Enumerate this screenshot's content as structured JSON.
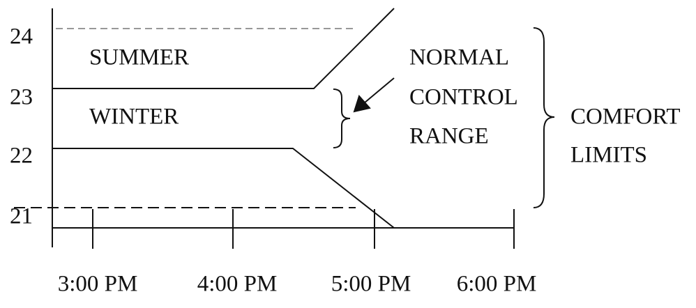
{
  "y_labels": [
    "24",
    "23",
    "22",
    "21"
  ],
  "x_labels": [
    "3:00 PM",
    "4:00 PM",
    "5:00 PM",
    "6:00 PM"
  ],
  "regions": {
    "summer": "SUMMER",
    "winter": "WINTER"
  },
  "normal_control_range": [
    "NORMAL",
    "CONTROL",
    "RANGE"
  ],
  "comfort_limits": [
    "COMFORT",
    "LIMITS"
  ]
}
